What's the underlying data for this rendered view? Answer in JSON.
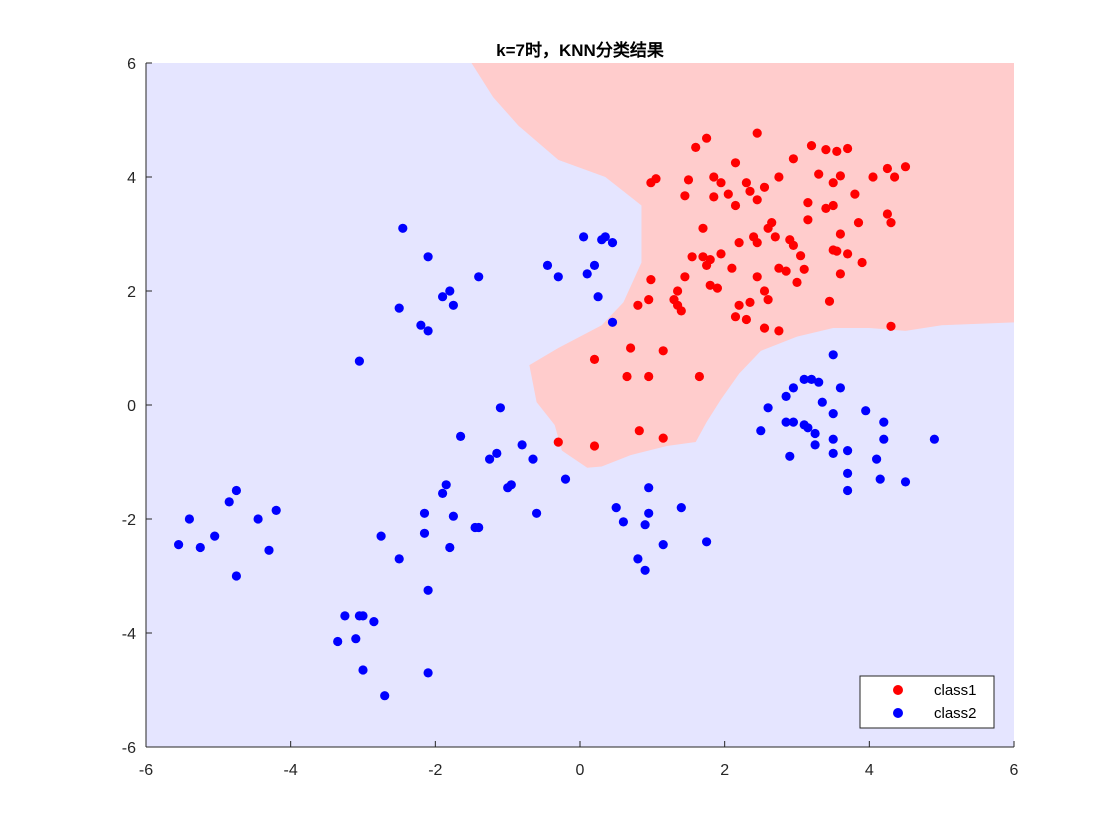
{
  "chart_data": {
    "type": "scatter",
    "title": "k=7时，KNN分类结果",
    "xlabel": "",
    "ylabel": "",
    "xlim": [
      -6,
      6
    ],
    "ylim": [
      -6,
      6
    ],
    "x_ticks": [
      -6,
      -4,
      -2,
      0,
      2,
      4,
      6
    ],
    "y_ticks": [
      -6,
      -4,
      -2,
      0,
      2,
      4,
      6
    ],
    "grid": false,
    "legend_position": "bottom-right",
    "background_colors": {
      "class2_region": "#e5e5ff",
      "class1_region": "#ffcccc"
    },
    "decision_region_class1": [
      [
        -1.5,
        6
      ],
      [
        6,
        6
      ],
      [
        6,
        1.45
      ],
      [
        5,
        1.4
      ],
      [
        4.5,
        1.3
      ],
      [
        4,
        1.35
      ],
      [
        3.5,
        1.35
      ],
      [
        3,
        1.2
      ],
      [
        2.5,
        0.95
      ],
      [
        2.2,
        0.55
      ],
      [
        1.95,
        0.1
      ],
      [
        1.75,
        -0.3
      ],
      [
        1.6,
        -0.65
      ],
      [
        1.2,
        -0.72
      ],
      [
        0.7,
        -0.88
      ],
      [
        0.3,
        -1.08
      ],
      [
        0.1,
        -1.1
      ],
      [
        -0.25,
        -0.8
      ],
      [
        -0.35,
        -0.35
      ],
      [
        -0.6,
        0.05
      ],
      [
        -0.7,
        0.7
      ],
      [
        -0.3,
        1.0
      ],
      [
        0.3,
        1.4
      ],
      [
        0.6,
        1.8
      ],
      [
        0.85,
        2.5
      ],
      [
        0.85,
        3.5
      ],
      [
        0.35,
        4.0
      ],
      [
        -0.3,
        4.3
      ],
      [
        -0.85,
        4.9
      ],
      [
        -1.2,
        5.4
      ]
    ],
    "series": [
      {
        "name": "class1",
        "color": "#ff0000",
        "points": [
          [
            2.45,
            4.77
          ],
          [
            1.75,
            4.68
          ],
          [
            1.6,
            4.52
          ],
          [
            3.2,
            4.55
          ],
          [
            3.4,
            4.48
          ],
          [
            3.55,
            4.45
          ],
          [
            3.7,
            4.5
          ],
          [
            2.95,
            4.32
          ],
          [
            2.15,
            4.25
          ],
          [
            4.5,
            4.18
          ],
          [
            4.25,
            4.15
          ],
          [
            1.05,
            3.97
          ],
          [
            0.98,
            3.9
          ],
          [
            1.5,
            3.95
          ],
          [
            1.85,
            4.0
          ],
          [
            2.3,
            3.9
          ],
          [
            2.55,
            3.82
          ],
          [
            2.75,
            4.0
          ],
          [
            3.3,
            4.05
          ],
          [
            3.5,
            3.9
          ],
          [
            3.6,
            4.02
          ],
          [
            4.05,
            4.0
          ],
          [
            4.35,
            4.0
          ],
          [
            1.45,
            3.67
          ],
          [
            1.85,
            3.65
          ],
          [
            1.95,
            3.9
          ],
          [
            2.05,
            3.7
          ],
          [
            2.35,
            3.75
          ],
          [
            2.45,
            3.6
          ],
          [
            3.15,
            3.55
          ],
          [
            3.5,
            3.5
          ],
          [
            3.8,
            3.7
          ],
          [
            1.7,
            3.1
          ],
          [
            2.15,
            3.5
          ],
          [
            2.65,
            3.2
          ],
          [
            3.15,
            3.25
          ],
          [
            3.4,
            3.45
          ],
          [
            3.85,
            3.2
          ],
          [
            4.25,
            3.35
          ],
          [
            4.3,
            3.2
          ],
          [
            2.2,
            2.85
          ],
          [
            2.4,
            2.95
          ],
          [
            2.6,
            3.1
          ],
          [
            2.9,
            2.9
          ],
          [
            3.6,
            3.0
          ],
          [
            1.55,
            2.6
          ],
          [
            1.7,
            2.6
          ],
          [
            1.8,
            2.55
          ],
          [
            1.95,
            2.65
          ],
          [
            2.45,
            2.85
          ],
          [
            2.7,
            2.95
          ],
          [
            2.95,
            2.8
          ],
          [
            3.05,
            2.62
          ],
          [
            3.5,
            2.72
          ],
          [
            3.55,
            2.7
          ],
          [
            3.7,
            2.65
          ],
          [
            1.75,
            2.45
          ],
          [
            2.1,
            2.4
          ],
          [
            2.75,
            2.4
          ],
          [
            2.85,
            2.35
          ],
          [
            3.1,
            2.38
          ],
          [
            1.45,
            2.25
          ],
          [
            0.98,
            2.2
          ],
          [
            1.8,
            2.1
          ],
          [
            1.9,
            2.05
          ],
          [
            2.45,
            2.25
          ],
          [
            2.55,
            2.0
          ],
          [
            3.0,
            2.15
          ],
          [
            3.6,
            2.3
          ],
          [
            3.9,
            2.5
          ],
          [
            1.35,
            2.0
          ],
          [
            1.3,
            1.85
          ],
          [
            0.95,
            1.85
          ],
          [
            0.8,
            1.75
          ],
          [
            1.35,
            1.75
          ],
          [
            1.4,
            1.65
          ],
          [
            2.2,
            1.75
          ],
          [
            2.35,
            1.8
          ],
          [
            2.6,
            1.85
          ],
          [
            3.45,
            1.82
          ],
          [
            2.15,
            1.55
          ],
          [
            2.3,
            1.5
          ],
          [
            2.55,
            1.35
          ],
          [
            2.75,
            1.3
          ],
          [
            4.3,
            1.38
          ],
          [
            0.7,
            1.0
          ],
          [
            1.15,
            0.95
          ],
          [
            0.2,
            0.8
          ],
          [
            0.65,
            0.5
          ],
          [
            0.95,
            0.5
          ],
          [
            1.65,
            0.5
          ],
          [
            -0.3,
            -0.65
          ],
          [
            0.2,
            -0.72
          ],
          [
            0.82,
            -0.45
          ],
          [
            1.15,
            -0.58
          ]
        ]
      },
      {
        "name": "class2",
        "color": "#0000ff",
        "points": [
          [
            -2.45,
            3.1
          ],
          [
            -2.1,
            2.6
          ],
          [
            -1.8,
            2.0
          ],
          [
            -1.9,
            1.9
          ],
          [
            -1.75,
            1.75
          ],
          [
            -2.5,
            1.7
          ],
          [
            -2.2,
            1.4
          ],
          [
            -2.1,
            1.3
          ],
          [
            -1.4,
            2.25
          ],
          [
            -3.05,
            0.77
          ],
          [
            0.05,
            2.95
          ],
          [
            0.35,
            2.95
          ],
          [
            0.3,
            2.9
          ],
          [
            0.45,
            2.85
          ],
          [
            -0.45,
            2.45
          ],
          [
            -0.3,
            2.25
          ],
          [
            0.2,
            2.45
          ],
          [
            0.1,
            2.3
          ],
          [
            0.25,
            1.9
          ],
          [
            0.45,
            1.45
          ],
          [
            -1.1,
            -0.05
          ],
          [
            -1.65,
            -0.55
          ],
          [
            -1.25,
            -0.95
          ],
          [
            -1.15,
            -0.85
          ],
          [
            -0.8,
            -0.7
          ],
          [
            -0.65,
            -0.95
          ],
          [
            -0.95,
            -1.4
          ],
          [
            -1.0,
            -1.45
          ],
          [
            -0.2,
            -1.3
          ],
          [
            -1.85,
            -1.4
          ],
          [
            -1.9,
            -1.55
          ],
          [
            -1.75,
            -1.95
          ],
          [
            -2.15,
            -1.9
          ],
          [
            -1.4,
            -2.15
          ],
          [
            -1.45,
            -2.15
          ],
          [
            -2.15,
            -2.25
          ],
          [
            -1.8,
            -2.5
          ],
          [
            -2.75,
            -2.3
          ],
          [
            -2.5,
            -2.7
          ],
          [
            -2.1,
            -3.25
          ],
          [
            -0.6,
            -1.9
          ],
          [
            0.5,
            -1.8
          ],
          [
            0.6,
            -2.05
          ],
          [
            0.95,
            -1.45
          ],
          [
            0.95,
            -1.9
          ],
          [
            0.9,
            -2.1
          ],
          [
            1.4,
            -1.8
          ],
          [
            1.15,
            -2.45
          ],
          [
            0.8,
            -2.7
          ],
          [
            0.9,
            -2.9
          ],
          [
            1.75,
            -2.4
          ],
          [
            -4.75,
            -1.5
          ],
          [
            -4.85,
            -1.7
          ],
          [
            -4.45,
            -2.0
          ],
          [
            -5.55,
            -2.45
          ],
          [
            -5.4,
            -2.0
          ],
          [
            -5.25,
            -2.5
          ],
          [
            -5.05,
            -2.3
          ],
          [
            -4.75,
            -3.0
          ],
          [
            -4.2,
            -1.85
          ],
          [
            -4.3,
            -2.55
          ],
          [
            -3.05,
            -3.7
          ],
          [
            -3.0,
            -3.7
          ],
          [
            -3.25,
            -3.7
          ],
          [
            -2.85,
            -3.8
          ],
          [
            -3.35,
            -4.15
          ],
          [
            -3.1,
            -4.1
          ],
          [
            -3.0,
            -4.65
          ],
          [
            -2.7,
            -5.1
          ],
          [
            -2.1,
            -4.7
          ],
          [
            3.5,
            0.88
          ],
          [
            3.1,
            0.45
          ],
          [
            3.2,
            0.45
          ],
          [
            3.3,
            0.4
          ],
          [
            2.95,
            0.3
          ],
          [
            3.6,
            0.3
          ],
          [
            2.85,
            0.15
          ],
          [
            3.35,
            0.05
          ],
          [
            2.6,
            -0.05
          ],
          [
            3.95,
            -0.1
          ],
          [
            3.5,
            -0.15
          ],
          [
            4.2,
            -0.3
          ],
          [
            2.85,
            -0.3
          ],
          [
            2.95,
            -0.3
          ],
          [
            3.1,
            -0.35
          ],
          [
            3.15,
            -0.4
          ],
          [
            3.25,
            -0.5
          ],
          [
            2.5,
            -0.45
          ],
          [
            3.5,
            -0.6
          ],
          [
            4.2,
            -0.6
          ],
          [
            4.9,
            -0.6
          ],
          [
            3.25,
            -0.7
          ],
          [
            3.5,
            -0.85
          ],
          [
            3.7,
            -0.8
          ],
          [
            2.9,
            -0.9
          ],
          [
            4.1,
            -0.95
          ],
          [
            3.7,
            -1.2
          ],
          [
            4.15,
            -1.3
          ],
          [
            4.5,
            -1.35
          ],
          [
            3.7,
            -1.5
          ]
        ]
      }
    ]
  }
}
